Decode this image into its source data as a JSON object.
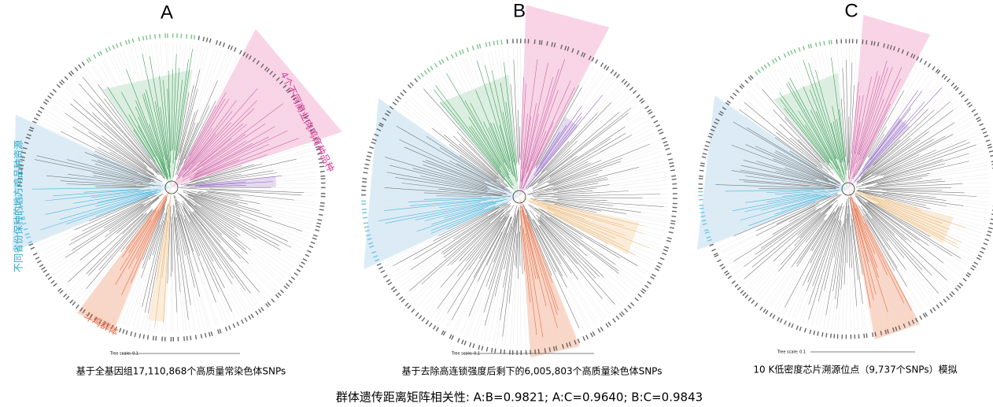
{
  "panels": [
    {
      "label": "A",
      "tree_scale": "Tree scale: 0.1",
      "caption": "基于全基因组17,110,868个高质量常染色体SNPs",
      "annotations": [
        "4个不同商业肉鸡育种品种",
        "不同省份保种的地方鸡品种资源",
        "斗鸡群体"
      ]
    },
    {
      "label": "B",
      "tree_scale": "Tree scale: 0.1",
      "caption": "基于去除高连锁强度后剩下的6,005,803个高质量染色体SNPs"
    },
    {
      "label": "C",
      "tree_scale": "Tree scale: 0.1",
      "caption": "10 K低密度芯片溯源位点（9,737个SNPs）模拟"
    }
  ],
  "footer": "群体遗传距离矩阵相关性: A:B=0.9821; A:C=0.9640; B:C=0.9843"
}
